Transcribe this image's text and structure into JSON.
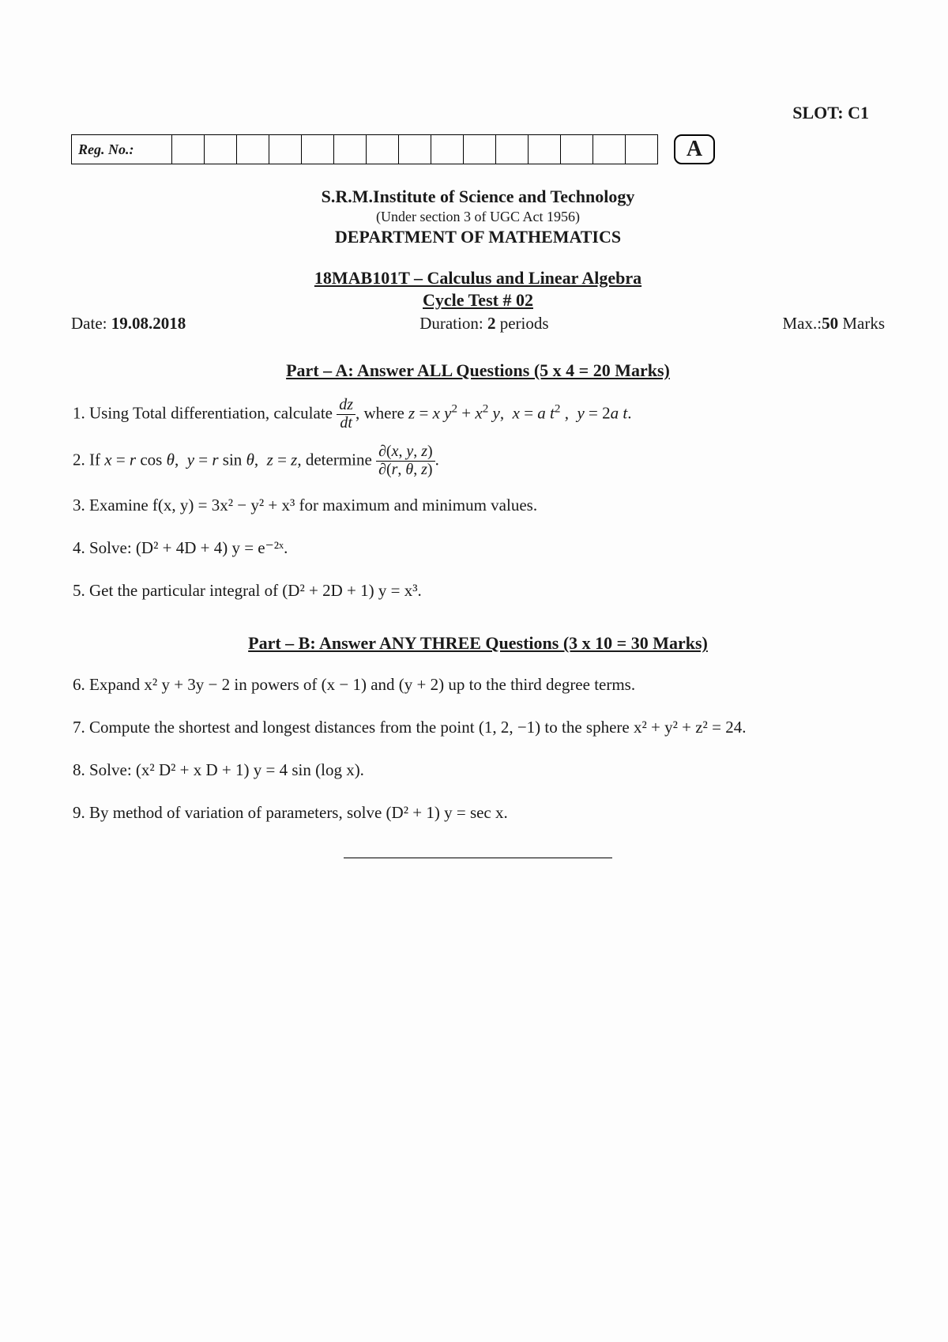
{
  "slot_label": "SLOT: C1",
  "reg_label": "Reg. No.:",
  "reg_cell_count": 15,
  "set_letter": "A",
  "institute": "S.R.M.Institute of Science and Technology",
  "under_act": "(Under section 3 of UGC Act 1956)",
  "department": "DEPARTMENT OF MATHEMATICS",
  "course_line": "18MAB101T – Calculus and Linear Algebra",
  "cycle_line": "Cycle Test # 02",
  "date_label": "Date: ",
  "date_value": "19.08.2018",
  "duration_prefix": "Duration: ",
  "duration_value": "2",
  "duration_suffix": " periods",
  "max_prefix": "Max.:",
  "max_value": "50",
  "max_suffix": " Marks",
  "partA_title": "Part – A: Answer ALL Questions (5 x 4 = 20 Marks)",
  "partB_title": "Part – B: Answer ANY THREE Questions (3 x 10 = 30 Marks)",
  "q1_a": "1. Using Total differentiation, calculate ",
  "q1_b": ", where ",
  "q2_a": "2. If ",
  "q2_b": ", determine ",
  "q3": "3. Examine  f(x, y) = 3x² − y² + x³ for maximum and minimum values.",
  "q4": "4. Solve: (D² + 4D + 4) y = e⁻²ˣ.",
  "q5": "5. Get the particular integral of (D² + 2D + 1) y = x³.",
  "q6": "6. Expand  x² y + 3y − 2 in powers of (x − 1) and (y + 2) up to the third degree terms.",
  "q7": "7. Compute the shortest and longest distances from the point (1, 2, −1) to the sphere  x² + y² + z² = 24.",
  "q8": "8. Solve: (x² D² + x D + 1) y = 4 sin (log x).",
  "q9": "9. By method of variation of parameters, solve (D² + 1) y = sec x."
}
